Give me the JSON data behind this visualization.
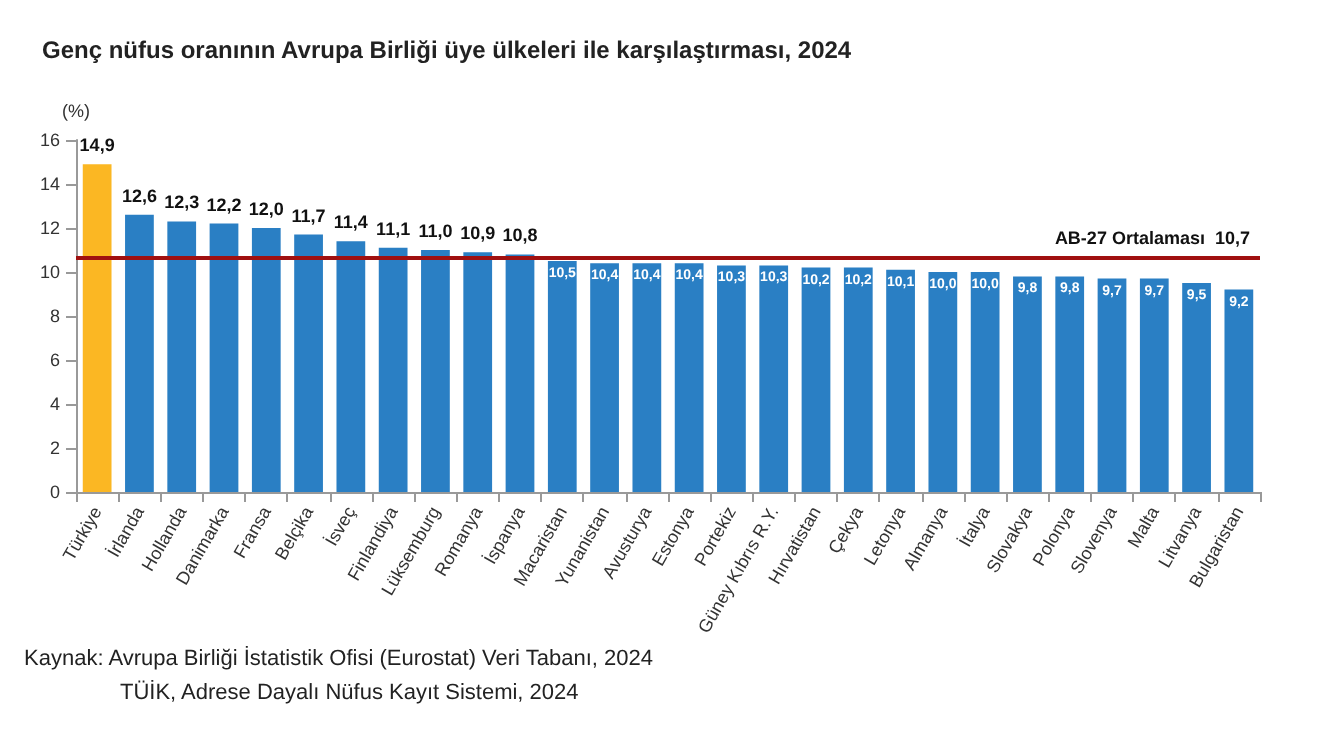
{
  "chart_data": {
    "type": "bar",
    "title": "Genç nüfus oranının Avrupa Birliği üye ülkeleri ile karşılaştırması, 2024",
    "ylabel": "(%)",
    "categories": [
      "Türkiye",
      "İrlanda",
      "Hollanda",
      "Danimarka",
      "Fransa",
      "Belçika",
      "İsveç",
      "Finlandiya",
      "Lüksemburg",
      "Romanya",
      "İspanya",
      "Macaristan",
      "Yunanistan",
      "Avusturya",
      "Estonya",
      "Portekiz",
      "Güney Kıbrıs R.Y.",
      "Hırvatistan",
      "Çekya",
      "Letonya",
      "Almanya",
      "İtalya",
      "Slovakya",
      "Polonya",
      "Slovenya",
      "Malta",
      "Litvanya",
      "Bulgaristan"
    ],
    "values": [
      14.9,
      12.6,
      12.3,
      12.2,
      12.0,
      11.7,
      11.4,
      11.1,
      11.0,
      10.9,
      10.8,
      10.5,
      10.4,
      10.4,
      10.4,
      10.3,
      10.3,
      10.2,
      10.2,
      10.1,
      10.0,
      10.0,
      9.8,
      9.8,
      9.7,
      9.7,
      9.5,
      9.2
    ],
    "value_labels": [
      "14,9",
      "12,6",
      "12,3",
      "12,2",
      "12,0",
      "11,7",
      "11,4",
      "11,1",
      "11,0",
      "10,9",
      "10,8",
      "10,5",
      "10,4",
      "10,4",
      "10,4",
      "10,3",
      "10,3",
      "10,2",
      "10,2",
      "10,1",
      "10,0",
      "10,0",
      "9,8",
      "9,8",
      "9,7",
      "9,7",
      "9,5",
      "9,2"
    ],
    "colors": [
      "#fbb723",
      "#2a7fc4",
      "#2a7fc4",
      "#2a7fc4",
      "#2a7fc4",
      "#2a7fc4",
      "#2a7fc4",
      "#2a7fc4",
      "#2a7fc4",
      "#2a7fc4",
      "#2a7fc4",
      "#2a7fc4",
      "#2a7fc4",
      "#2a7fc4",
      "#2a7fc4",
      "#2a7fc4",
      "#2a7fc4",
      "#2a7fc4",
      "#2a7fc4",
      "#2a7fc4",
      "#2a7fc4",
      "#2a7fc4",
      "#2a7fc4",
      "#2a7fc4",
      "#2a7fc4",
      "#2a7fc4",
      "#2a7fc4",
      "#2a7fc4"
    ],
    "ylim": [
      0,
      16
    ],
    "yticks": [
      0,
      2,
      4,
      6,
      8,
      10,
      12,
      14,
      16
    ],
    "grid": false,
    "ref_lines": [
      {
        "axis": "y",
        "value": 10.7,
        "label": "AB-27 Ortalaması  10,7",
        "color": "#a01010"
      }
    ],
    "annotations": [
      "Kaynak: Avrupa Birliği İstatistik Ofisi (Eurostat) Veri Tabanı, 2024",
      "TÜİK, Adrese Dayalı Nüfus Kayıt Sistemi, 2024"
    ]
  }
}
